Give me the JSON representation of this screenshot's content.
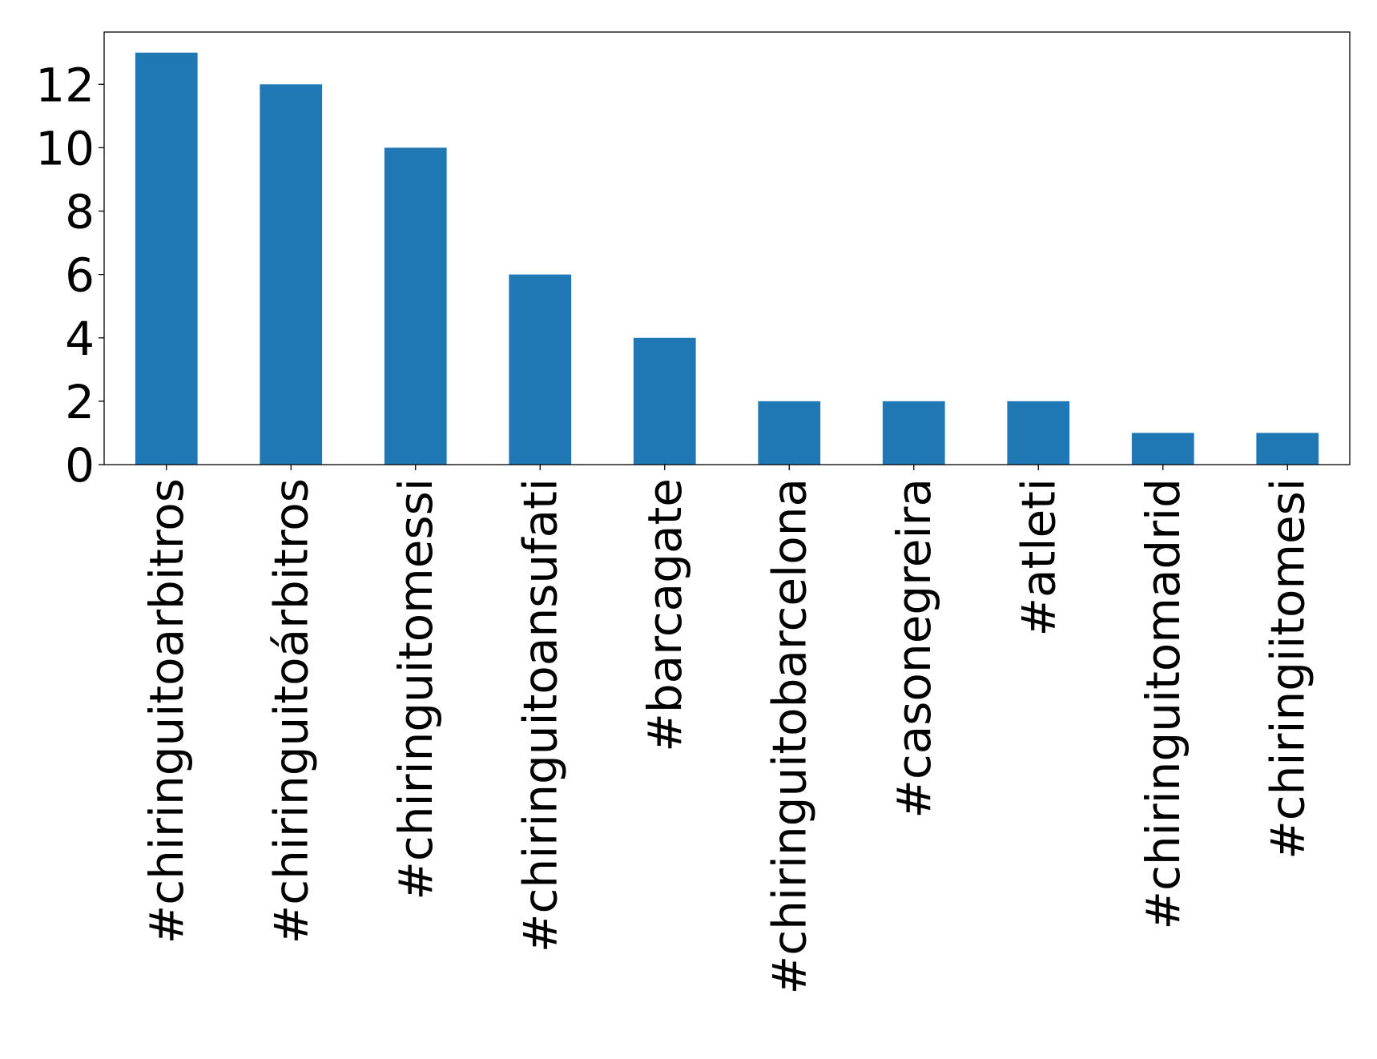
{
  "chart_data": {
    "type": "bar",
    "title": "",
    "xlabel": "",
    "ylabel": "",
    "categories": [
      "#chiringuitoarbitros",
      "#chiringuitoárbitros",
      "#chiringuitomessi",
      "#chiringuitoansufati",
      "#barcagate",
      "#chiringuitobarcelona",
      "#casonegreira",
      "#atleti",
      "#chiringuitomadrid",
      "#chiringiitomesi"
    ],
    "values": [
      13,
      12,
      10,
      6,
      4,
      2,
      2,
      2,
      1,
      1
    ],
    "ylim": [
      0,
      13.65
    ],
    "yticks": [
      0,
      2,
      4,
      6,
      8,
      10,
      12
    ],
    "grid": false,
    "legend": "none",
    "colors": {
      "bar": "#1f77b4",
      "axis": "#000000",
      "text": "#000000",
      "background": "#ffffff"
    }
  }
}
